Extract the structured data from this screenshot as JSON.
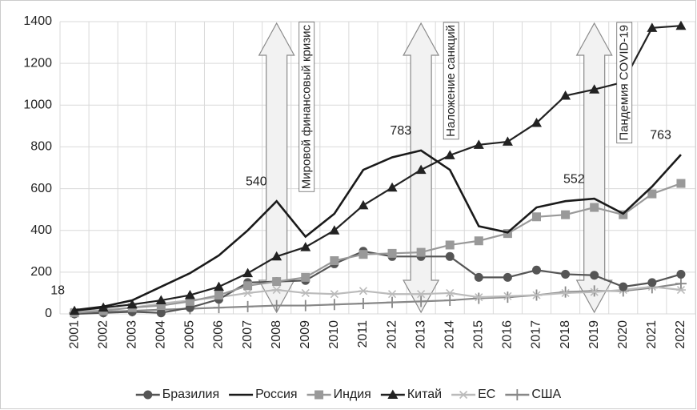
{
  "chart_data": {
    "type": "line",
    "categories": [
      "2001",
      "2002",
      "2003",
      "2004",
      "2005",
      "2006",
      "2007",
      "2008",
      "2009",
      "2010",
      "2011",
      "2012",
      "2013",
      "2014",
      "2015",
      "2016",
      "2017",
      "2018",
      "2019",
      "2020",
      "2021",
      "2022"
    ],
    "series": [
      {
        "name": "Бразилия",
        "color": "#555555",
        "marker": "circle",
        "values": [
          0,
          5,
          10,
          5,
          30,
          70,
          150,
          155,
          160,
          240,
          300,
          275,
          275,
          275,
          175,
          175,
          210,
          190,
          185,
          130,
          150,
          190
        ]
      },
      {
        "name": "Россия",
        "color": "#1a1a1a",
        "marker": "none",
        "values": [
          18,
          35,
          65,
          130,
          195,
          280,
          400,
          540,
          370,
          480,
          690,
          750,
          783,
          690,
          420,
          390,
          510,
          540,
          552,
          480,
          610,
          763
        ],
        "value_labels": [
          "18",
          null,
          null,
          null,
          null,
          null,
          null,
          "540",
          null,
          null,
          null,
          null,
          "783",
          null,
          null,
          null,
          null,
          null,
          "552",
          null,
          null,
          "763"
        ]
      },
      {
        "name": "Индия",
        "color": "#999999",
        "marker": "square",
        "values": [
          5,
          15,
          30,
          40,
          60,
          90,
          135,
          155,
          175,
          255,
          285,
          290,
          295,
          330,
          350,
          385,
          465,
          475,
          510,
          475,
          575,
          625
        ]
      },
      {
        "name": "Китай",
        "color": "#222222",
        "marker": "triangle",
        "values": [
          15,
          30,
          45,
          65,
          90,
          130,
          195,
          275,
          320,
          400,
          520,
          605,
          690,
          760,
          810,
          825,
          915,
          1045,
          1075,
          1110,
          1370,
          1380
        ]
      },
      {
        "name": "ЕС",
        "color": "#bbbbbb",
        "marker": "asterisk",
        "values": [
          10,
          20,
          30,
          50,
          65,
          80,
          100,
          115,
          100,
          95,
          110,
          95,
          95,
          100,
          80,
          85,
          90,
          100,
          105,
          115,
          130,
          115
        ]
      },
      {
        "name": "США",
        "color": "#888888",
        "marker": "plus",
        "values": [
          5,
          10,
          15,
          20,
          25,
          30,
          35,
          40,
          40,
          45,
          50,
          55,
          60,
          65,
          75,
          80,
          90,
          105,
          110,
          110,
          125,
          145
        ]
      }
    ],
    "annotations": [
      {
        "text": "Мировой финансовый кризис",
        "x": "2008"
      },
      {
        "text": "Наложение санкций",
        "x": "2013"
      },
      {
        "text": "Пандемия COVID-19",
        "x": "2019"
      }
    ],
    "ylim": [
      0,
      1400
    ],
    "yticks": [
      0,
      200,
      400,
      600,
      800,
      1000,
      1200,
      1400
    ],
    "grid": true,
    "legend": "bottom"
  }
}
